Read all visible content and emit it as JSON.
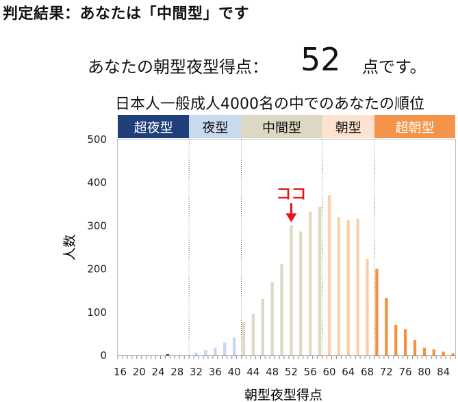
{
  "heading": "判定結果：あなたは「中間型」です",
  "score": {
    "prefix": "あなたの朝型夜型得点：",
    "value": "52",
    "suffix": "点です。"
  },
  "chart_data": {
    "type": "bar",
    "title": "日本人一般成人4000名の中でのあなたの順位",
    "xlabel": "朝型夜型得点",
    "ylabel": "人数",
    "ylim": [
      0,
      500
    ],
    "yticks": [
      0,
      100,
      200,
      300,
      400,
      500
    ],
    "xticks": [
      16,
      20,
      24,
      28,
      32,
      36,
      40,
      44,
      48,
      52,
      56,
      60,
      64,
      68,
      72,
      76,
      80,
      84
    ],
    "x": [
      16,
      17,
      18,
      19,
      20,
      21,
      22,
      23,
      24,
      25,
      26,
      27,
      28,
      29,
      30,
      31,
      32,
      33,
      34,
      35,
      36,
      37,
      38,
      39,
      40,
      41,
      42,
      43,
      44,
      45,
      46,
      47,
      48,
      49,
      50,
      51,
      52,
      53,
      54,
      55,
      56,
      57,
      58,
      59,
      60,
      61,
      62,
      63,
      64,
      65,
      66,
      67,
      68,
      69,
      70,
      71,
      72,
      73,
      74,
      75,
      76,
      77,
      78,
      79,
      80,
      81,
      82,
      83,
      84,
      85,
      86
    ],
    "values": [
      0,
      0,
      0,
      0,
      0,
      0,
      0,
      0,
      0,
      0,
      3,
      0,
      0,
      0,
      0,
      0,
      7,
      0,
      13,
      0,
      18,
      0,
      30,
      0,
      42,
      0,
      77,
      0,
      97,
      0,
      131,
      0,
      170,
      0,
      212,
      0,
      302,
      0,
      287,
      0,
      333,
      0,
      344,
      0,
      371,
      0,
      321,
      0,
      313,
      0,
      317,
      0,
      223,
      0,
      201,
      0,
      133,
      0,
      71,
      0,
      61,
      0,
      36,
      0,
      18,
      0,
      14,
      0,
      9,
      0,
      5
    ],
    "categories": [
      {
        "label": "超夜型",
        "range": [
          16,
          30
        ],
        "header_color": "#1F3F7A",
        "bar_color": "#1F3F7A",
        "text_color": "#ffffff"
      },
      {
        "label": "夜型",
        "range": [
          31,
          41
        ],
        "header_color": "#C9DAF0",
        "bar_color": "#C5D8F1",
        "text_color": "#111111"
      },
      {
        "label": "中間型",
        "range": [
          42,
          58
        ],
        "header_color": "#DDD8C4",
        "bar_color": "#DDD9C3",
        "text_color": "#111111"
      },
      {
        "label": "朝型",
        "range": [
          59,
          69
        ],
        "header_color": "#FCE2CF",
        "bar_color": "#FBCFAA",
        "text_color": "#111111"
      },
      {
        "label": "超朝型",
        "range": [
          70,
          86
        ],
        "header_color": "#F4934A",
        "bar_color": "#F4923E",
        "text_color": "#ffffff"
      }
    ],
    "marker": {
      "label": "ココ",
      "x": 52,
      "color": "#E8141A"
    },
    "grid": false,
    "legend": "none"
  }
}
